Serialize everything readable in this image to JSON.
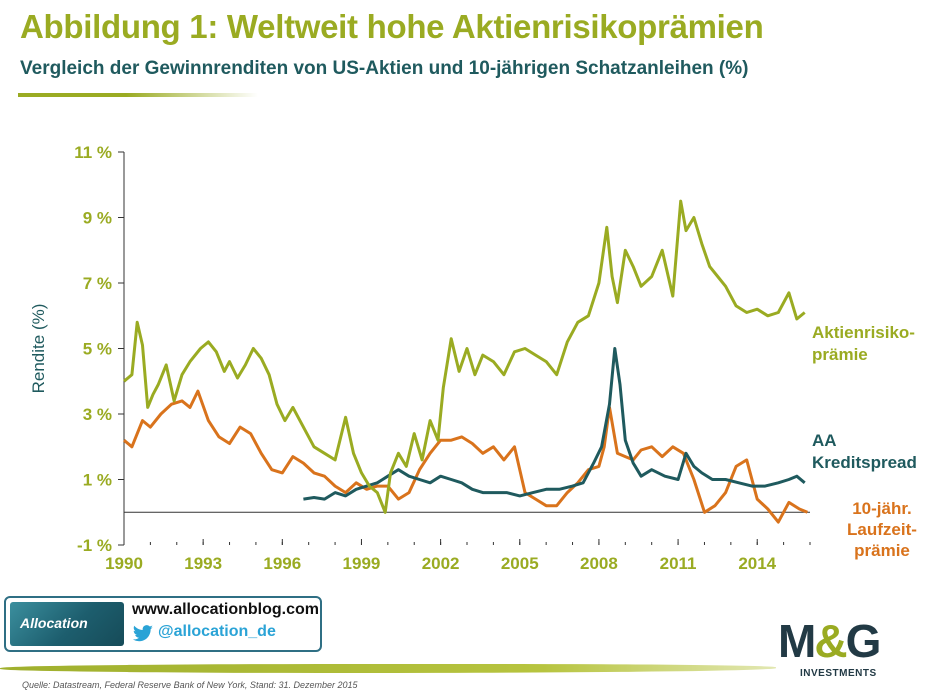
{
  "header": {
    "title": "Abbildung 1: Weltweit hohe Aktienrisikoprämien",
    "subtitle": "Vergleich der Gewinnrenditen von US-Aktien und 10-jährigen Schatzanleihen (%)"
  },
  "chart_data": {
    "type": "line",
    "ylabel": "Rendite (%)",
    "ylim": [
      -1,
      11
    ],
    "xlim": [
      1990,
      2016
    ],
    "yticks": [
      -1,
      1,
      3,
      5,
      7,
      9,
      11
    ],
    "ytick_labels": [
      "-1 %",
      "1 %",
      "3 %",
      "5 %",
      "7 %",
      "9 %",
      "11 %"
    ],
    "xticks": [
      1990,
      1993,
      1996,
      1999,
      2002,
      2005,
      2008,
      2011,
      2014
    ],
    "xtick_labels": [
      "1990",
      "1993",
      "1996",
      "1999",
      "2002",
      "2005",
      "2008",
      "2011",
      "2014"
    ],
    "grid": false,
    "legend": "inline-right",
    "series": [
      {
        "name": "Aktienrisiko- prämie",
        "label_lines": [
          "Aktienrisiko-",
          "prämie"
        ],
        "color": "#9aab22",
        "x": [
          1990.0,
          1990.3,
          1990.5,
          1990.7,
          1990.9,
          1991.1,
          1991.3,
          1991.6,
          1991.9,
          1992.2,
          1992.5,
          1992.9,
          1993.2,
          1993.5,
          1993.8,
          1994.0,
          1994.3,
          1994.6,
          1994.9,
          1995.2,
          1995.5,
          1995.8,
          1996.1,
          1996.4,
          1996.8,
          1997.2,
          1997.6,
          1998.0,
          1998.4,
          1998.7,
          1999.0,
          1999.3,
          1999.6,
          1999.9,
          2000.1,
          2000.4,
          2000.7,
          2001.0,
          2001.3,
          2001.6,
          2001.9,
          2002.1,
          2002.4,
          2002.7,
          2003.0,
          2003.3,
          2003.6,
          2004.0,
          2004.4,
          2004.8,
          2005.2,
          2005.6,
          2006.0,
          2006.4,
          2006.8,
          2007.2,
          2007.6,
          2008.0,
          2008.3,
          2008.5,
          2008.7,
          2009.0,
          2009.3,
          2009.6,
          2010.0,
          2010.4,
          2010.8,
          2011.1,
          2011.3,
          2011.6,
          2011.9,
          2012.2,
          2012.5,
          2012.8,
          2013.2,
          2013.6,
          2014.0,
          2014.4,
          2014.8,
          2015.2,
          2015.5,
          2015.8
        ],
        "values": [
          4.0,
          4.2,
          5.8,
          5.1,
          3.2,
          3.6,
          3.9,
          4.5,
          3.4,
          4.2,
          4.6,
          5.0,
          5.2,
          4.9,
          4.3,
          4.6,
          4.1,
          4.5,
          5.0,
          4.7,
          4.2,
          3.3,
          2.8,
          3.2,
          2.6,
          2.0,
          1.8,
          1.6,
          2.9,
          1.8,
          1.2,
          0.8,
          0.6,
          0.0,
          1.2,
          1.8,
          1.4,
          2.4,
          1.6,
          2.8,
          2.2,
          3.8,
          5.3,
          4.3,
          5.0,
          4.2,
          4.8,
          4.6,
          4.2,
          4.9,
          5.0,
          4.8,
          4.6,
          4.2,
          5.2,
          5.8,
          6.0,
          7.0,
          8.7,
          7.2,
          6.4,
          8.0,
          7.5,
          6.9,
          7.2,
          8.0,
          6.6,
          9.5,
          8.6,
          9.0,
          8.2,
          7.5,
          7.2,
          6.9,
          6.3,
          6.1,
          6.2,
          6.0,
          6.1,
          6.7,
          5.9,
          6.1
        ]
      },
      {
        "name": "AA Kreditspread",
        "label_lines": [
          "AA",
          "Kreditspread"
        ],
        "color": "#1f5a5e",
        "x": [
          1996.8,
          1997.2,
          1997.6,
          1998.0,
          1998.4,
          1998.8,
          1999.2,
          1999.6,
          2000.0,
          2000.4,
          2000.8,
          2001.2,
          2001.6,
          2002.0,
          2002.4,
          2002.8,
          2003.2,
          2003.6,
          2004.0,
          2004.5,
          2005.0,
          2005.5,
          2006.0,
          2006.5,
          2007.0,
          2007.4,
          2007.8,
          2008.1,
          2008.4,
          2008.6,
          2008.8,
          2009.0,
          2009.3,
          2009.6,
          2010.0,
          2010.5,
          2011.0,
          2011.3,
          2011.6,
          2011.9,
          2012.3,
          2012.8,
          2013.3,
          2013.8,
          2014.3,
          2014.8,
          2015.2,
          2015.5,
          2015.8
        ],
        "values": [
          0.4,
          0.45,
          0.4,
          0.6,
          0.5,
          0.7,
          0.8,
          0.9,
          1.1,
          1.3,
          1.1,
          1.0,
          0.9,
          1.1,
          1.0,
          0.9,
          0.7,
          0.6,
          0.6,
          0.6,
          0.5,
          0.6,
          0.7,
          0.7,
          0.8,
          0.9,
          1.5,
          2.0,
          3.3,
          5.0,
          3.9,
          2.2,
          1.5,
          1.1,
          1.3,
          1.1,
          1.0,
          1.8,
          1.4,
          1.2,
          1.0,
          1.0,
          0.9,
          0.8,
          0.8,
          0.9,
          1.0,
          1.1,
          0.9
        ]
      },
      {
        "name": "10-jähr. Laufzeit- prämie",
        "label_lines": [
          "10-jähr.",
          "Laufzeit-",
          "prämie"
        ],
        "color": "#d9731c",
        "x": [
          1990.0,
          1990.3,
          1990.7,
          1991.0,
          1991.4,
          1991.8,
          1992.2,
          1992.5,
          1992.8,
          1993.2,
          1993.6,
          1994.0,
          1994.4,
          1994.8,
          1995.2,
          1995.6,
          1996.0,
          1996.4,
          1996.8,
          1997.2,
          1997.6,
          1998.0,
          1998.4,
          1998.8,
          1999.2,
          1999.6,
          2000.0,
          2000.4,
          2000.8,
          2001.2,
          2001.6,
          2002.0,
          2002.4,
          2002.8,
          2003.2,
          2003.6,
          2004.0,
          2004.4,
          2004.8,
          2005.2,
          2005.6,
          2006.0,
          2006.4,
          2006.8,
          2007.2,
          2007.6,
          2008.0,
          2008.2,
          2008.4,
          2008.7,
          2009.0,
          2009.3,
          2009.6,
          2010.0,
          2010.4,
          2010.8,
          2011.2,
          2011.6,
          2012.0,
          2012.4,
          2012.8,
          2013.2,
          2013.6,
          2014.0,
          2014.4,
          2014.8,
          2015.2,
          2015.6,
          2015.9
        ],
        "values": [
          2.2,
          2.0,
          2.8,
          2.6,
          3.0,
          3.3,
          3.4,
          3.2,
          3.7,
          2.8,
          2.3,
          2.1,
          2.6,
          2.4,
          1.8,
          1.3,
          1.2,
          1.7,
          1.5,
          1.2,
          1.1,
          0.8,
          0.6,
          0.9,
          0.7,
          0.8,
          0.8,
          0.4,
          0.6,
          1.3,
          1.8,
          2.2,
          2.2,
          2.3,
          2.1,
          1.8,
          2.0,
          1.6,
          2.0,
          0.6,
          0.4,
          0.2,
          0.2,
          0.6,
          0.9,
          1.3,
          1.4,
          2.0,
          3.2,
          1.8,
          1.7,
          1.6,
          1.9,
          2.0,
          1.7,
          2.0,
          1.8,
          1.0,
          0.0,
          0.2,
          0.6,
          1.4,
          1.6,
          0.4,
          0.1,
          -0.3,
          0.3,
          0.1,
          0.0
        ]
      }
    ]
  },
  "footer": {
    "logo_text": "Allocation",
    "blog_url": "www.allocationblog.com",
    "twitter_handle": "@allocation_de",
    "brand_logo": "M&G",
    "brand_sub": "INVESTMENTS",
    "source": "Quelle: Datastream,  Federal Reserve Bank of New York, Stand: 31. Dezember  2015"
  },
  "colors": {
    "title": "#9aab22",
    "subtitle": "#1f5a5e",
    "axis_text": "#9aab22",
    "axis_line": "#333333"
  }
}
